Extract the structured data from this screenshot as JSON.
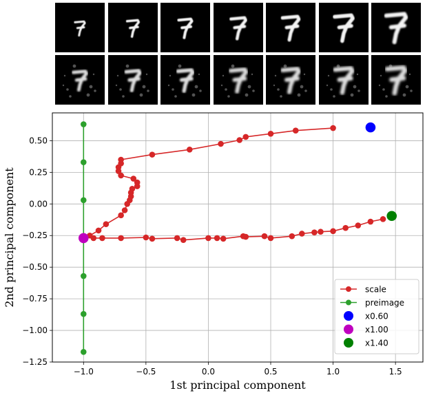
{
  "thumbnails": {
    "rows": [
      {
        "name": "scale",
        "count": 7,
        "scales": [
          0.6,
          0.7,
          0.8,
          0.9,
          1.0,
          1.1,
          1.2
        ],
        "style": "clean"
      },
      {
        "name": "preimage",
        "count": 7,
        "scales": [
          0.8,
          0.85,
          0.9,
          0.95,
          1.0,
          1.05,
          1.1
        ],
        "style": "noisy"
      }
    ]
  },
  "chart_data": {
    "type": "line",
    "xlabel": "1st principal component",
    "ylabel": "2nd principal component",
    "xlim": [
      -1.25,
      1.72
    ],
    "ylim": [
      -1.25,
      0.72
    ],
    "xticks": [
      "−1.0",
      "−0.5",
      "0.0",
      "0.5",
      "1.0",
      "1.5"
    ],
    "xtick_values": [
      -1.0,
      -0.5,
      0.0,
      0.5,
      1.0,
      1.5
    ],
    "yticks": [
      "0.50",
      "0.25",
      "0.00",
      "−0.25",
      "−0.50",
      "−0.75",
      "−1.00",
      "−1.25"
    ],
    "ytick_values": [
      0.5,
      0.25,
      0.0,
      -0.25,
      -0.5,
      -0.75,
      -1.0,
      -1.25
    ],
    "grid": true,
    "legend_position": "bottom-right",
    "series": [
      {
        "name": "scale",
        "color": "#d62728",
        "points": [
          [
            1.0,
            0.6
          ],
          [
            0.7,
            0.58
          ],
          [
            0.5,
            0.555
          ],
          [
            0.3,
            0.53
          ],
          [
            0.25,
            0.505
          ],
          [
            0.1,
            0.475
          ],
          [
            -0.15,
            0.43
          ],
          [
            -0.45,
            0.39
          ],
          [
            -0.7,
            0.35
          ],
          [
            -0.7,
            0.32
          ],
          [
            -0.72,
            0.29
          ],
          [
            -0.72,
            0.26
          ],
          [
            -0.7,
            0.225
          ],
          [
            -0.6,
            0.2
          ],
          [
            -0.57,
            0.17
          ],
          [
            -0.57,
            0.14
          ],
          [
            -0.61,
            0.12
          ],
          [
            -0.62,
            0.09
          ],
          [
            -0.62,
            0.06
          ],
          [
            -0.63,
            0.03
          ],
          [
            -0.65,
            0.0
          ],
          [
            -0.67,
            -0.05
          ],
          [
            -0.7,
            -0.09
          ],
          [
            -0.82,
            -0.16
          ],
          [
            -0.88,
            -0.21
          ],
          [
            -0.95,
            -0.25
          ],
          [
            -0.92,
            -0.27
          ],
          [
            -0.85,
            -0.27
          ],
          [
            -0.7,
            -0.27
          ],
          [
            -0.5,
            -0.265
          ],
          [
            -0.45,
            -0.275
          ],
          [
            -0.25,
            -0.27
          ],
          [
            -0.2,
            -0.285
          ],
          [
            0.0,
            -0.27
          ],
          [
            0.07,
            -0.27
          ],
          [
            0.12,
            -0.275
          ],
          [
            0.28,
            -0.255
          ],
          [
            0.3,
            -0.26
          ],
          [
            0.45,
            -0.255
          ],
          [
            0.5,
            -0.27
          ],
          [
            0.67,
            -0.255
          ],
          [
            0.75,
            -0.235
          ],
          [
            0.85,
            -0.225
          ],
          [
            0.9,
            -0.22
          ],
          [
            1.0,
            -0.215
          ],
          [
            1.1,
            -0.19
          ],
          [
            1.2,
            -0.17
          ],
          [
            1.3,
            -0.14
          ],
          [
            1.4,
            -0.12
          ]
        ]
      },
      {
        "name": "preimage",
        "color": "#2ca02c",
        "points": [
          [
            -1.0,
            0.63
          ],
          [
            -1.0,
            0.33
          ],
          [
            -1.0,
            0.03
          ],
          [
            -1.0,
            -0.27
          ],
          [
            -1.0,
            -0.57
          ],
          [
            -1.0,
            -0.87
          ],
          [
            -1.0,
            -1.17
          ]
        ]
      }
    ],
    "markers": [
      {
        "name": "x0.60",
        "color": "#0000ff",
        "x": 1.3,
        "y": 0.605
      },
      {
        "name": "x1.00",
        "color": "#bf00bf",
        "x": -1.0,
        "y": -0.27
      },
      {
        "name": "x1.40",
        "color": "#008000",
        "x": 1.47,
        "y": -0.095
      }
    ]
  }
}
